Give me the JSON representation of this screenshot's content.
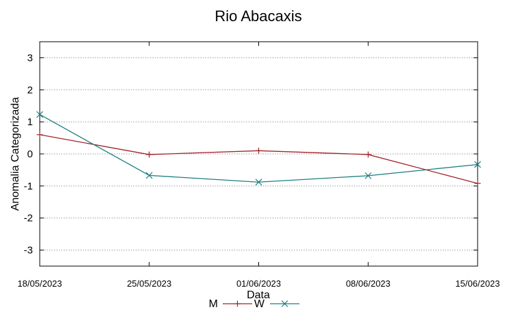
{
  "chart_data": {
    "type": "line",
    "title": "Rio Abacaxis",
    "xlabel": "Data",
    "ylabel": "Anomalia Categorizada",
    "x": [
      "18/05/2023",
      "25/05/2023",
      "01/06/2023",
      "08/06/2023",
      "15/06/2023"
    ],
    "ylim": [
      -3.5,
      3.5
    ],
    "yticks": [
      -3,
      -2,
      -1,
      0,
      1,
      2,
      3
    ],
    "grid": true,
    "legend_position": "bottom",
    "series": [
      {
        "name": "M",
        "values": [
          0.6,
          -0.02,
          0.1,
          -0.02,
          -0.92
        ],
        "color": "#a0222a",
        "marker": "plus"
      },
      {
        "name": "W",
        "values": [
          1.23,
          -0.67,
          -0.88,
          -0.68,
          -0.33
        ],
        "color": "#1c7e80",
        "marker": "cross"
      }
    ]
  }
}
